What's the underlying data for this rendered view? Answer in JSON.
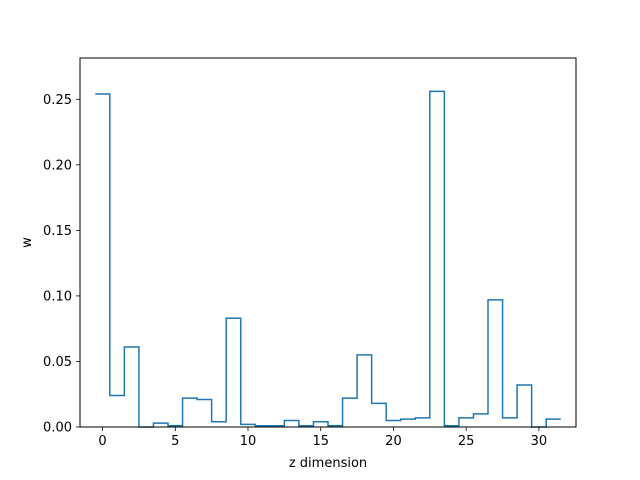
{
  "chart_data": {
    "type": "step",
    "xlabel": "z dimension",
    "ylabel": "w",
    "xlim": [
      -1.55,
      32.55
    ],
    "ylim": [
      0,
      0.2815
    ],
    "grid": false,
    "legend": "none",
    "series": [
      {
        "color": "#1f77b4",
        "x": [
          0,
          1,
          2,
          3,
          4,
          5,
          6,
          7,
          8,
          9,
          10,
          11,
          12,
          13,
          14,
          15,
          16,
          17,
          18,
          19,
          20,
          21,
          22,
          23,
          24,
          25,
          26,
          27,
          28,
          29,
          30,
          31
        ],
        "values": [
          0.254,
          0.024,
          0.061,
          0.0,
          0.003,
          0.001,
          0.022,
          0.021,
          0.004,
          0.083,
          0.002,
          0.001,
          0.001,
          0.005,
          0.001,
          0.004,
          0.001,
          0.022,
          0.055,
          0.018,
          0.005,
          0.006,
          0.007,
          0.256,
          0.001,
          0.007,
          0.01,
          0.097,
          0.007,
          0.032,
          0.0,
          0.006
        ]
      }
    ],
    "x_ticks": [
      {
        "value": 0,
        "label": "0"
      },
      {
        "value": 5,
        "label": "5"
      },
      {
        "value": 10,
        "label": "10"
      },
      {
        "value": 15,
        "label": "15"
      },
      {
        "value": 20,
        "label": "20"
      },
      {
        "value": 25,
        "label": "25"
      },
      {
        "value": 30,
        "label": "30"
      }
    ],
    "y_ticks": [
      {
        "value": 0.0,
        "label": "0.00"
      },
      {
        "value": 0.05,
        "label": "0.05"
      },
      {
        "value": 0.1,
        "label": "0.10"
      },
      {
        "value": 0.15,
        "label": "0.15"
      },
      {
        "value": 0.2,
        "label": "0.20"
      },
      {
        "value": 0.25,
        "label": "0.25"
      }
    ]
  }
}
